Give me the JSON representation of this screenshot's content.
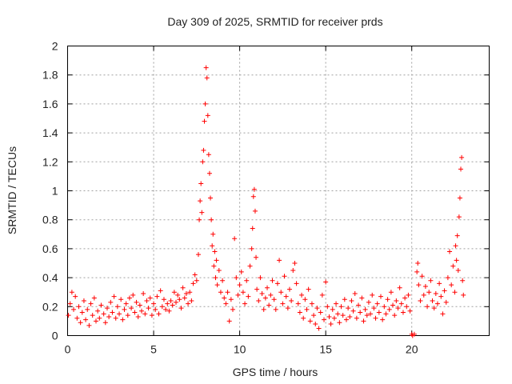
{
  "chart_data": {
    "type": "scatter",
    "title": "Day 309 of 2025, SRMTID for receiver prds",
    "xlabel": "GPS time / hours",
    "ylabel": "SRMTID / TECUs",
    "xlim": [
      0,
      24.5
    ],
    "ylim": [
      0,
      2
    ],
    "xticks": [
      0,
      5,
      10,
      15,
      20
    ],
    "xtick_labels": [
      "0",
      "5",
      "10",
      "15",
      "20"
    ],
    "yticks": [
      0,
      0.2,
      0.4,
      0.6,
      0.8,
      1,
      1.2,
      1.4,
      1.6,
      1.8,
      2
    ],
    "ytick_labels": [
      "0",
      "0.2",
      "0.4",
      "0.6",
      "0.8",
      "1",
      "1.2",
      "1.4",
      "1.6",
      "1.8",
      "2"
    ],
    "grid": true,
    "marker": "+",
    "color": "#ff0000",
    "series": [
      {
        "name": "SRMTID",
        "points": [
          [
            0.05,
            0.14
          ],
          [
            0.15,
            0.22
          ],
          [
            0.25,
            0.3
          ],
          [
            0.35,
            0.18
          ],
          [
            0.45,
            0.27
          ],
          [
            0.55,
            0.12
          ],
          [
            0.65,
            0.2
          ],
          [
            0.75,
            0.09
          ],
          [
            0.85,
            0.16
          ],
          [
            0.95,
            0.24
          ],
          [
            1.05,
            0.11
          ],
          [
            1.15,
            0.18
          ],
          [
            1.25,
            0.07
          ],
          [
            1.35,
            0.22
          ],
          [
            1.45,
            0.14
          ],
          [
            1.55,
            0.26
          ],
          [
            1.65,
            0.1
          ],
          [
            1.75,
            0.17
          ],
          [
            1.85,
            0.12
          ],
          [
            1.95,
            0.21
          ],
          [
            2.1,
            0.15
          ],
          [
            2.2,
            0.09
          ],
          [
            2.3,
            0.19
          ],
          [
            2.4,
            0.13
          ],
          [
            2.5,
            0.23
          ],
          [
            2.6,
            0.16
          ],
          [
            2.7,
            0.27
          ],
          [
            2.8,
            0.12
          ],
          [
            2.9,
            0.2
          ],
          [
            3.0,
            0.15
          ],
          [
            3.1,
            0.25
          ],
          [
            3.2,
            0.11
          ],
          [
            3.3,
            0.18
          ],
          [
            3.4,
            0.22
          ],
          [
            3.5,
            0.14
          ],
          [
            3.6,
            0.26
          ],
          [
            3.7,
            0.19
          ],
          [
            3.8,
            0.28
          ],
          [
            3.9,
            0.16
          ],
          [
            4.0,
            0.23
          ],
          [
            4.1,
            0.13
          ],
          [
            4.2,
            0.21
          ],
          [
            4.3,
            0.17
          ],
          [
            4.4,
            0.29
          ],
          [
            4.5,
            0.15
          ],
          [
            4.6,
            0.24
          ],
          [
            4.7,
            0.19
          ],
          [
            4.8,
            0.26
          ],
          [
            4.9,
            0.14
          ],
          [
            5.0,
            0.22
          ],
          [
            5.1,
            0.18
          ],
          [
            5.2,
            0.27
          ],
          [
            5.3,
            0.15
          ],
          [
            5.4,
            0.31
          ],
          [
            5.5,
            0.2
          ],
          [
            5.6,
            0.25
          ],
          [
            5.7,
            0.18
          ],
          [
            5.8,
            0.22
          ],
          [
            5.9,
            0.17
          ],
          [
            6.0,
            0.24
          ],
          [
            6.1,
            0.21
          ],
          [
            6.2,
            0.3
          ],
          [
            6.3,
            0.23
          ],
          [
            6.4,
            0.28
          ],
          [
            6.5,
            0.25
          ],
          [
            6.6,
            0.19
          ],
          [
            6.7,
            0.33
          ],
          [
            6.8,
            0.26
          ],
          [
            6.9,
            0.29
          ],
          [
            7.0,
            0.22
          ],
          [
            7.1,
            0.3
          ],
          [
            7.2,
            0.24
          ],
          [
            7.3,
            0.36
          ],
          [
            7.4,
            0.42
          ],
          [
            7.5,
            0.38
          ],
          [
            7.6,
            0.56
          ],
          [
            7.65,
            0.8
          ],
          [
            7.7,
            0.93
          ],
          [
            7.75,
            1.05
          ],
          [
            7.8,
            0.85
          ],
          [
            7.85,
            1.2
          ],
          [
            7.9,
            1.28
          ],
          [
            7.95,
            1.48
          ],
          [
            8.0,
            1.6
          ],
          [
            8.05,
            1.85
          ],
          [
            8.1,
            1.78
          ],
          [
            8.15,
            1.52
          ],
          [
            8.2,
            1.25
          ],
          [
            8.25,
            1.12
          ],
          [
            8.3,
            0.95
          ],
          [
            8.35,
            0.8
          ],
          [
            8.4,
            0.62
          ],
          [
            8.45,
            0.7
          ],
          [
            8.5,
            0.48
          ],
          [
            8.55,
            0.58
          ],
          [
            8.6,
            0.4
          ],
          [
            8.65,
            0.52
          ],
          [
            8.7,
            0.35
          ],
          [
            8.8,
            0.45
          ],
          [
            8.9,
            0.3
          ],
          [
            9.0,
            0.38
          ],
          [
            9.1,
            0.26
          ],
          [
            9.2,
            0.22
          ],
          [
            9.3,
            0.3
          ],
          [
            9.4,
            0.1
          ],
          [
            9.5,
            0.25
          ],
          [
            9.6,
            0.18
          ],
          [
            9.7,
            0.67
          ],
          [
            9.8,
            0.4
          ],
          [
            9.9,
            0.28
          ],
          [
            10.0,
            0.35
          ],
          [
            10.1,
            0.44
          ],
          [
            10.2,
            0.3
          ],
          [
            10.3,
            0.22
          ],
          [
            10.4,
            0.38
          ],
          [
            10.5,
            0.27
          ],
          [
            10.6,
            0.48
          ],
          [
            10.7,
            0.6
          ],
          [
            10.75,
            0.74
          ],
          [
            10.8,
            0.96
          ],
          [
            10.85,
            1.01
          ],
          [
            10.9,
            0.86
          ],
          [
            10.95,
            0.54
          ],
          [
            11.0,
            0.32
          ],
          [
            11.1,
            0.24
          ],
          [
            11.2,
            0.4
          ],
          [
            11.3,
            0.29
          ],
          [
            11.4,
            0.18
          ],
          [
            11.5,
            0.26
          ],
          [
            11.6,
            0.33
          ],
          [
            11.7,
            0.21
          ],
          [
            11.8,
            0.28
          ],
          [
            11.9,
            0.38
          ],
          [
            12.0,
            0.25
          ],
          [
            12.1,
            0.18
          ],
          [
            12.2,
            0.36
          ],
          [
            12.3,
            0.52
          ],
          [
            12.4,
            0.3
          ],
          [
            12.5,
            0.22
          ],
          [
            12.6,
            0.41
          ],
          [
            12.7,
            0.27
          ],
          [
            12.8,
            0.19
          ],
          [
            12.9,
            0.32
          ],
          [
            13.0,
            0.24
          ],
          [
            13.1,
            0.45
          ],
          [
            13.2,
            0.5
          ],
          [
            13.3,
            0.36
          ],
          [
            13.4,
            0.22
          ],
          [
            13.5,
            0.16
          ],
          [
            13.6,
            0.28
          ],
          [
            13.7,
            0.12
          ],
          [
            13.8,
            0.25
          ],
          [
            13.9,
            0.18
          ],
          [
            14.0,
            0.32
          ],
          [
            14.1,
            0.1
          ],
          [
            14.2,
            0.22
          ],
          [
            14.3,
            0.14
          ],
          [
            14.4,
            0.08
          ],
          [
            14.5,
            0.19
          ],
          [
            14.6,
            0.05
          ],
          [
            14.7,
            0.16
          ],
          [
            14.8,
            0.28
          ],
          [
            14.9,
            0.11
          ],
          [
            15.0,
            0.37
          ],
          [
            15.1,
            0.2
          ],
          [
            15.2,
            0.13
          ],
          [
            15.3,
            0.08
          ],
          [
            15.4,
            0.18
          ],
          [
            15.5,
            0.12
          ],
          [
            15.6,
            0.22
          ],
          [
            15.7,
            0.15
          ],
          [
            15.8,
            0.09
          ],
          [
            15.9,
            0.2
          ],
          [
            16.0,
            0.14
          ],
          [
            16.1,
            0.25
          ],
          [
            16.2,
            0.11
          ],
          [
            16.3,
            0.19
          ],
          [
            16.4,
            0.13
          ],
          [
            16.5,
            0.24
          ],
          [
            16.6,
            0.17
          ],
          [
            16.7,
            0.29
          ],
          [
            16.8,
            0.12
          ],
          [
            16.9,
            0.21
          ],
          [
            17.0,
            0.16
          ],
          [
            17.1,
            0.26
          ],
          [
            17.2,
            0.1
          ],
          [
            17.3,
            0.18
          ],
          [
            17.4,
            0.14
          ],
          [
            17.5,
            0.23
          ],
          [
            17.6,
            0.15
          ],
          [
            17.7,
            0.28
          ],
          [
            17.8,
            0.19
          ],
          [
            17.9,
            0.12
          ],
          [
            18.0,
            0.22
          ],
          [
            18.1,
            0.16
          ],
          [
            18.2,
            0.27
          ],
          [
            18.3,
            0.11
          ],
          [
            18.4,
            0.2
          ],
          [
            18.5,
            0.15
          ],
          [
            18.6,
            0.25
          ],
          [
            18.7,
            0.18
          ],
          [
            18.8,
            0.3
          ],
          [
            18.9,
            0.21
          ],
          [
            19.0,
            0.14
          ],
          [
            19.1,
            0.24
          ],
          [
            19.2,
            0.19
          ],
          [
            19.3,
            0.33
          ],
          [
            19.4,
            0.22
          ],
          [
            19.5,
            0.16
          ],
          [
            19.6,
            0.26
          ],
          [
            19.7,
            0.2
          ],
          [
            19.8,
            0.28
          ],
          [
            19.9,
            0.17
          ],
          [
            20.0,
            0.01
          ],
          [
            20.05,
            0.0
          ],
          [
            20.15,
            0.01
          ],
          [
            20.3,
            0.44
          ],
          [
            20.35,
            0.5
          ],
          [
            20.4,
            0.35
          ],
          [
            20.5,
            0.24
          ],
          [
            20.6,
            0.41
          ],
          [
            20.7,
            0.28
          ],
          [
            20.8,
            0.34
          ],
          [
            20.9,
            0.2
          ],
          [
            21.0,
            0.3
          ],
          [
            21.1,
            0.38
          ],
          [
            21.2,
            0.24
          ],
          [
            21.3,
            0.19
          ],
          [
            21.4,
            0.29
          ],
          [
            21.5,
            0.22
          ],
          [
            21.6,
            0.36
          ],
          [
            21.7,
            0.27
          ],
          [
            21.8,
            0.15
          ],
          [
            21.9,
            0.31
          ],
          [
            22.0,
            0.23
          ],
          [
            22.1,
            0.4
          ],
          [
            22.2,
            0.58
          ],
          [
            22.3,
            0.35
          ],
          [
            22.4,
            0.48
          ],
          [
            22.5,
            0.3
          ],
          [
            22.55,
            0.62
          ],
          [
            22.6,
            0.52
          ],
          [
            22.65,
            0.69
          ],
          [
            22.7,
            0.45
          ],
          [
            22.75,
            0.82
          ],
          [
            22.8,
            0.95
          ],
          [
            22.85,
            1.15
          ],
          [
            22.9,
            1.23
          ],
          [
            22.95,
            0.38
          ],
          [
            23.0,
            0.28
          ]
        ]
      }
    ]
  }
}
